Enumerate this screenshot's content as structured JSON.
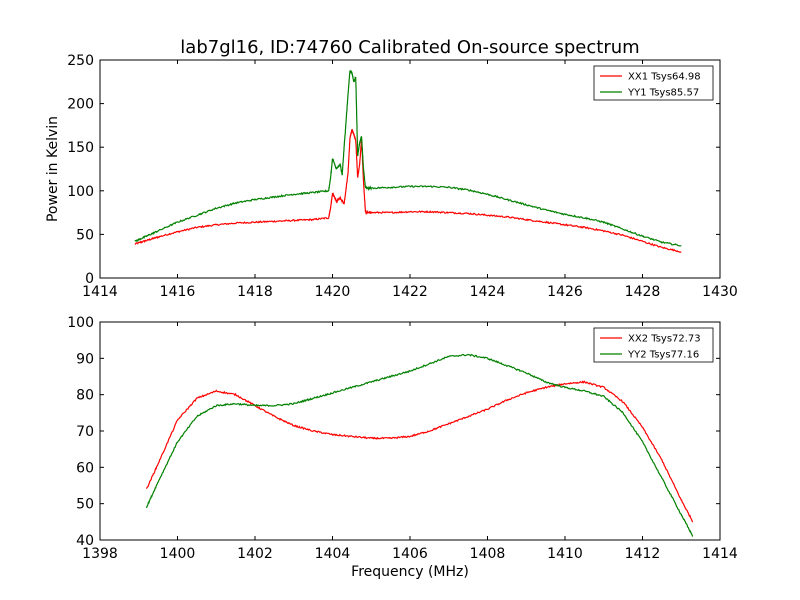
{
  "figure": {
    "title": "lab7gl16, ID:74760 Calibrated On-source spectrum"
  },
  "chart_data": [
    {
      "type": "line",
      "title": "lab7gl16, ID:74760 Calibrated On-source spectrum",
      "xlabel": "",
      "ylabel": "Power in Kelvin",
      "xlim": [
        1414,
        1430
      ],
      "ylim": [
        0,
        250
      ],
      "xticks": [
        1414,
        1416,
        1418,
        1420,
        1422,
        1424,
        1426,
        1428,
        1430
      ],
      "yticks": [
        0,
        50,
        100,
        150,
        200,
        250
      ],
      "grid": false,
      "legend_position": "top-right",
      "series": [
        {
          "name": "XX1 Tsys64.98",
          "color": "#ff0000",
          "x": [
            1414.9,
            1415.2,
            1415.5,
            1416.0,
            1416.5,
            1417.0,
            1417.5,
            1418.0,
            1418.5,
            1419.0,
            1419.5,
            1419.9,
            1419.95,
            1420.0,
            1420.1,
            1420.2,
            1420.3,
            1420.4,
            1420.45,
            1420.5,
            1420.55,
            1420.6,
            1420.65,
            1420.7,
            1420.75,
            1420.8,
            1420.85,
            1420.9,
            1421.0,
            1421.5,
            1422.0,
            1422.5,
            1423.0,
            1423.5,
            1424.0,
            1424.5,
            1425.0,
            1425.5,
            1426.0,
            1426.5,
            1427.0,
            1427.5,
            1428.0,
            1428.5,
            1429.0
          ],
          "y": [
            39,
            43,
            47,
            53,
            58,
            61,
            63,
            64,
            65,
            66,
            67,
            69,
            80,
            97,
            88,
            92,
            85,
            120,
            160,
            170,
            165,
            158,
            115,
            130,
            160,
            110,
            76,
            75,
            75,
            75,
            76,
            76,
            75,
            74,
            72,
            70,
            67,
            64,
            61,
            58,
            54,
            49,
            42,
            35,
            30
          ]
        },
        {
          "name": "YY1 Tsys85.57",
          "color": "#008000",
          "x": [
            1414.9,
            1415.2,
            1415.5,
            1416.0,
            1416.5,
            1417.0,
            1417.5,
            1418.0,
            1418.5,
            1419.0,
            1419.5,
            1419.9,
            1419.95,
            1420.0,
            1420.1,
            1420.2,
            1420.25,
            1420.3,
            1420.4,
            1420.45,
            1420.5,
            1420.55,
            1420.6,
            1420.65,
            1420.7,
            1420.75,
            1420.8,
            1420.85,
            1420.9,
            1421.0,
            1421.5,
            1422.0,
            1422.5,
            1423.0,
            1423.5,
            1424.0,
            1424.5,
            1425.0,
            1425.5,
            1426.0,
            1426.5,
            1427.0,
            1427.5,
            1428.0,
            1428.5,
            1429.0
          ],
          "y": [
            42,
            48,
            54,
            64,
            72,
            80,
            86,
            90,
            93,
            96,
            98,
            100,
            115,
            137,
            125,
            130,
            118,
            150,
            210,
            238,
            236,
            225,
            230,
            140,
            155,
            162,
            125,
            104,
            103,
            103,
            104,
            105,
            105,
            104,
            101,
            96,
            90,
            84,
            78,
            73,
            69,
            64,
            56,
            48,
            41,
            37
          ]
        }
      ]
    },
    {
      "type": "line",
      "title": "",
      "xlabel": "Frequency (MHz)",
      "ylabel": "",
      "xlim": [
        1398,
        1414
      ],
      "ylim": [
        40,
        100
      ],
      "xticks": [
        1398,
        1400,
        1402,
        1404,
        1406,
        1408,
        1410,
        1412,
        1414
      ],
      "yticks": [
        40,
        50,
        60,
        70,
        80,
        90,
        100
      ],
      "grid": false,
      "legend_position": "top-right",
      "series": [
        {
          "name": "XX2 Tsys72.73",
          "color": "#ff0000",
          "x": [
            1399.2,
            1399.5,
            1400.0,
            1400.5,
            1401.0,
            1401.5,
            1402.0,
            1402.5,
            1403.0,
            1403.5,
            1404.0,
            1404.5,
            1405.0,
            1405.5,
            1406.0,
            1406.5,
            1407.0,
            1407.5,
            1408.0,
            1408.5,
            1409.0,
            1409.5,
            1410.0,
            1410.5,
            1411.0,
            1411.5,
            1412.0,
            1412.5,
            1413.0,
            1413.3
          ],
          "y": [
            54,
            61,
            73,
            79,
            81,
            80,
            77,
            74,
            71.5,
            70,
            69,
            68.5,
            68,
            68,
            68.5,
            70,
            72,
            74,
            76,
            78.5,
            80.5,
            82,
            83,
            83.5,
            82,
            78,
            71,
            62,
            51,
            45
          ]
        },
        {
          "name": "YY2 Tsys77.16",
          "color": "#008000",
          "x": [
            1399.2,
            1399.5,
            1400.0,
            1400.5,
            1401.0,
            1401.5,
            1402.0,
            1402.5,
            1403.0,
            1403.5,
            1404.0,
            1404.5,
            1405.0,
            1405.5,
            1406.0,
            1406.5,
            1407.0,
            1407.5,
            1408.0,
            1408.5,
            1409.0,
            1409.5,
            1410.0,
            1410.5,
            1411.0,
            1411.5,
            1412.0,
            1412.5,
            1413.0,
            1413.3
          ],
          "y": [
            49,
            56,
            67,
            74,
            77,
            77.5,
            77,
            77,
            77.5,
            79,
            80.5,
            82,
            83.5,
            85,
            86.5,
            88.5,
            90.5,
            91,
            90,
            88,
            86,
            83.5,
            82,
            81,
            79.5,
            75,
            67,
            57,
            47,
            41
          ]
        }
      ]
    }
  ]
}
